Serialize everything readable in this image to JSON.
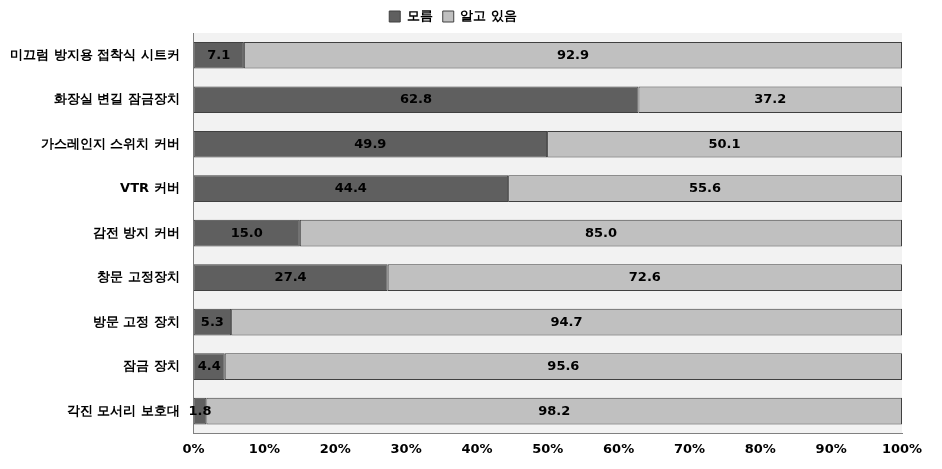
{
  "chart_data": {
    "type": "bar",
    "orientation": "horizontal",
    "stacked": true,
    "data_labels": true,
    "grid": false,
    "legend": "top",
    "categories": [
      "미끄럼 방지용 접착식 시트커",
      "화장실 변길 잠금장치",
      "가스레인지 스위치 커버",
      "VTR 커버",
      "감전 방지 커버",
      "창문 고정장치",
      "방문 고정 장치",
      "잠금 장치",
      "각진 모서리 보호대"
    ],
    "series": [
      {
        "name": "모름",
        "color": "#5f5f5f",
        "values": [
          7.1,
          62.8,
          49.9,
          44.4,
          15.0,
          27.4,
          5.3,
          4.4,
          1.8
        ],
        "value_labels": [
          "7.1",
          "62.8",
          "49.9",
          "44.4",
          "15.0",
          "27.4",
          "5.3",
          "4.4",
          "1.8"
        ]
      },
      {
        "name": "알고 있음",
        "color": "#c0c0c0",
        "values": [
          92.9,
          37.2,
          50.1,
          55.6,
          85.0,
          72.6,
          94.7,
          95.6,
          98.2
        ],
        "value_labels": [
          "92.9",
          "37.2",
          "50.1",
          "55.6",
          "85.0",
          "72.6",
          "94.7",
          "95.6",
          "98.2"
        ]
      }
    ],
    "xlim": [
      0,
      100
    ],
    "xticks": [
      {
        "value": 0,
        "label": "0%"
      },
      {
        "value": 10,
        "label": "10%"
      },
      {
        "value": 20,
        "label": "20%"
      },
      {
        "value": 30,
        "label": "30%"
      },
      {
        "value": 40,
        "label": "40%"
      },
      {
        "value": 50,
        "label": "50%"
      },
      {
        "value": 60,
        "label": "60%"
      },
      {
        "value": 70,
        "label": "70%"
      },
      {
        "value": 80,
        "label": "80%"
      },
      {
        "value": 90,
        "label": "90%"
      },
      {
        "value": 100,
        "label": "100%"
      }
    ]
  }
}
